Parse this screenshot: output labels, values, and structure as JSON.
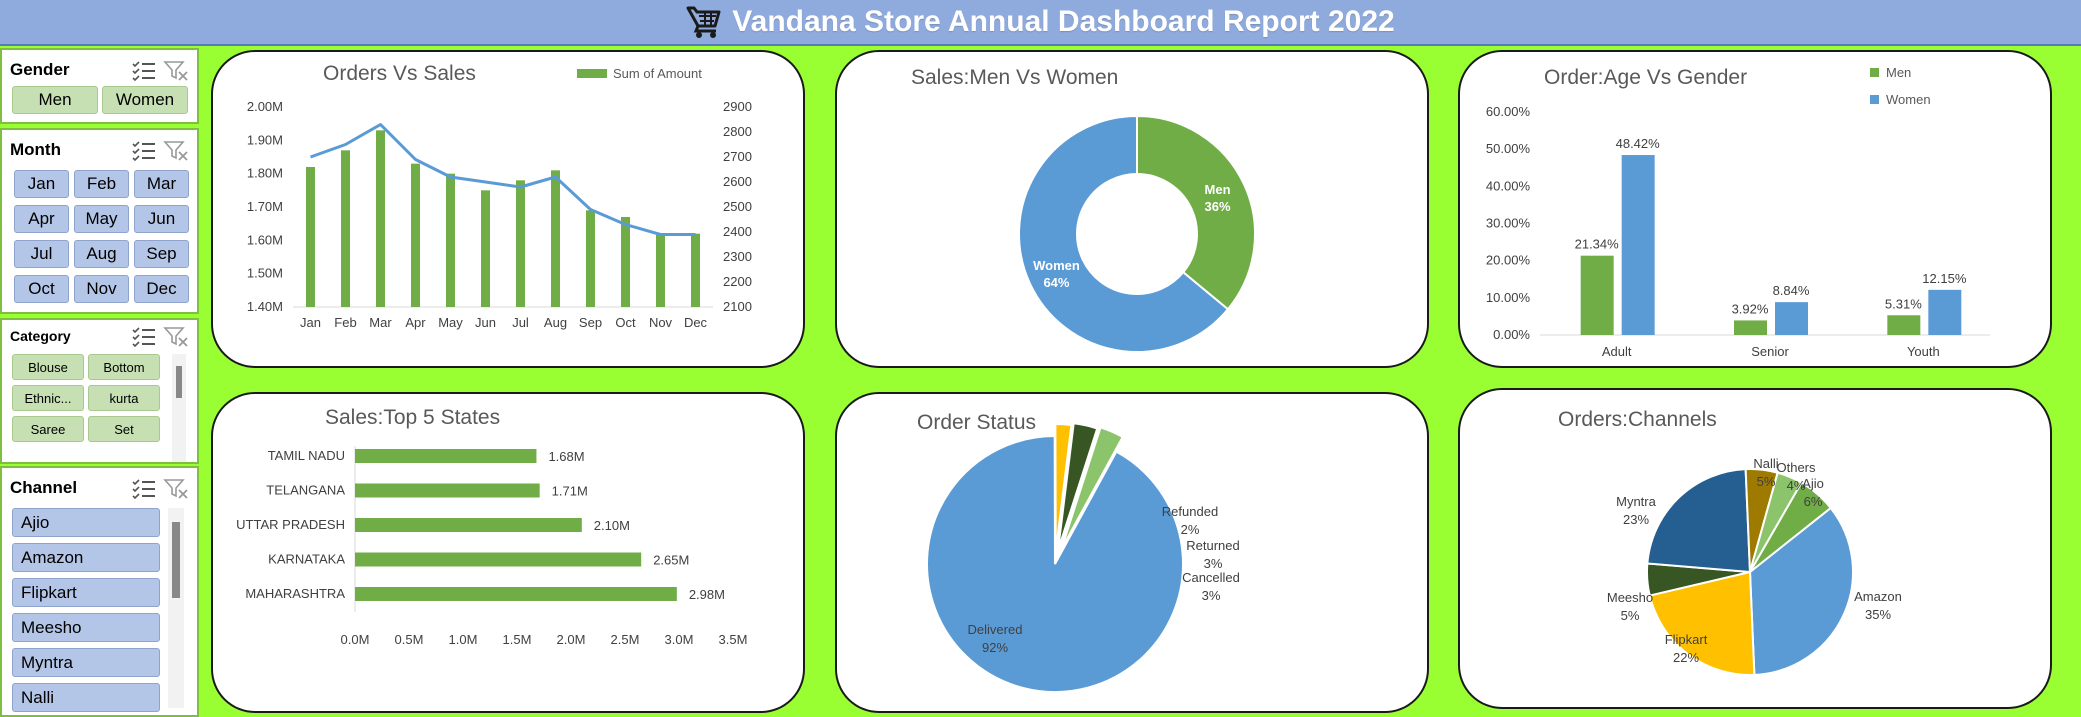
{
  "header": {
    "title": "Vandana Store Annual Dashboard Report 2022",
    "icon": "shopping-cart-icon",
    "background": "#8faadc"
  },
  "colors": {
    "green": "#70ad47",
    "blue": "#5b9bd5",
    "gold": "#ffc000",
    "darkgreen": "#375623",
    "navy": "#255e91",
    "olive": "#9e7b00",
    "lightgreen": "#8bc46a",
    "dash_bg": "#99ff33"
  },
  "slicers": {
    "gender": {
      "title": "Gender",
      "items": [
        "Men",
        "Women"
      ]
    },
    "month": {
      "title": "Month",
      "items": [
        "Jan",
        "Feb",
        "Mar",
        "Apr",
        "May",
        "Jun",
        "Jul",
        "Aug",
        "Sep",
        "Oct",
        "Nov",
        "Dec"
      ]
    },
    "category": {
      "title": "Category",
      "items": [
        "Blouse",
        "Bottom",
        "Ethnic...",
        "kurta",
        "Saree",
        "Set"
      ]
    },
    "channel": {
      "title": "Channel",
      "items": [
        "Ajio",
        "Amazon",
        "Flipkart",
        "Meesho",
        "Myntra",
        "Nalli"
      ]
    },
    "icons": [
      "multi-select-icon",
      "clear-filter-icon"
    ]
  },
  "charts": {
    "orders_vs_sales": {
      "title": "Orders Vs Sales",
      "legend": "Sum of Amount",
      "chart_data": {
        "type": "bar",
        "categories": [
          "Jan",
          "Feb",
          "Mar",
          "Apr",
          "May",
          "Jun",
          "Jul",
          "Aug",
          "Sep",
          "Oct",
          "Nov",
          "Dec"
        ],
        "series": [
          {
            "name": "Sum of Amount",
            "type": "bar",
            "values": [
              1.82,
              1.87,
              1.93,
              1.83,
              1.8,
              1.75,
              1.78,
              1.81,
              1.69,
              1.67,
              1.62,
              1.62
            ]
          },
          {
            "type": "line",
            "axis": "right",
            "values": [
              2700,
              2750,
              2830,
              2690,
              2620,
              2600,
              2580,
              2620,
              2490,
              2430,
              2390,
              2390
            ]
          }
        ],
        "y_ticks": [
          "2.00M",
          "1.90M",
          "1.80M",
          "1.70M",
          "1.60M",
          "1.50M",
          "1.40M"
        ],
        "y2_ticks": [
          "2900",
          "2800",
          "2700",
          "2600",
          "2500",
          "2400",
          "2300",
          "2200",
          "2100"
        ],
        "ylim": [
          1.4,
          2.0
        ],
        "y2lim": [
          2100,
          2900
        ]
      }
    },
    "men_vs_women": {
      "title": "Sales:Men Vs Women",
      "chart_data": {
        "type": "pie",
        "donut": true,
        "labels": [
          "Men",
          "Women"
        ],
        "values": [
          36,
          64
        ],
        "value_labels": [
          "36%",
          "64%"
        ]
      }
    },
    "age_vs_gender": {
      "title": "Order:Age  Vs Gender",
      "chart_data": {
        "type": "bar",
        "categories": [
          "Adult",
          "Senior",
          "Youth"
        ],
        "series": [
          {
            "name": "Men",
            "values": [
              21.34,
              3.92,
              5.31
            ],
            "labels": [
              "21.34%",
              "3.92%",
              "5.31%"
            ]
          },
          {
            "name": "Women",
            "values": [
              48.42,
              8.84,
              12.15
            ],
            "labels": [
              "48.42%",
              "8.84%",
              "12.15%"
            ]
          }
        ],
        "y_ticks": [
          "60.00%",
          "50.00%",
          "40.00%",
          "30.00%",
          "20.00%",
          "10.00%",
          "0.00%"
        ],
        "ylim": [
          0,
          60
        ],
        "legend_position": "top-right"
      }
    },
    "top_states": {
      "title": "Sales:Top 5 States",
      "chart_data": {
        "type": "bar",
        "orientation": "horizontal",
        "categories": [
          "TAMIL NADU",
          "TELANGANA",
          "UTTAR PRADESH",
          "KARNATAKA",
          "MAHARASHTRA"
        ],
        "values": [
          1.68,
          1.71,
          2.1,
          2.65,
          2.98
        ],
        "labels": [
          "1.68M",
          "1.71M",
          "2.10M",
          "2.65M",
          "2.98M"
        ],
        "x_ticks": [
          "0.0M",
          "0.5M",
          "1.0M",
          "1.5M",
          "2.0M",
          "2.5M",
          "3.0M",
          "3.5M"
        ],
        "xlim": [
          0,
          3.5
        ]
      }
    },
    "order_status": {
      "title": "Order Status",
      "chart_data": {
        "type": "pie",
        "labels": [
          "Delivered",
          "Refunded",
          "Returned",
          "Cancelled"
        ],
        "values": [
          92,
          2,
          3,
          3
        ],
        "value_labels": [
          "92%",
          "2%",
          "3%",
          "3%"
        ]
      }
    },
    "channels": {
      "title": "Orders:Channels",
      "chart_data": {
        "type": "pie",
        "labels": [
          "Amazon",
          "Flipkart",
          "Meesho",
          "Myntra",
          "Nalli",
          "Others",
          "Ajio"
        ],
        "values": [
          35,
          22,
          5,
          23,
          5,
          4,
          6
        ],
        "value_labels": [
          "35%",
          "22%",
          "5%",
          "23%",
          "5%",
          "4%",
          "6%"
        ]
      }
    }
  }
}
